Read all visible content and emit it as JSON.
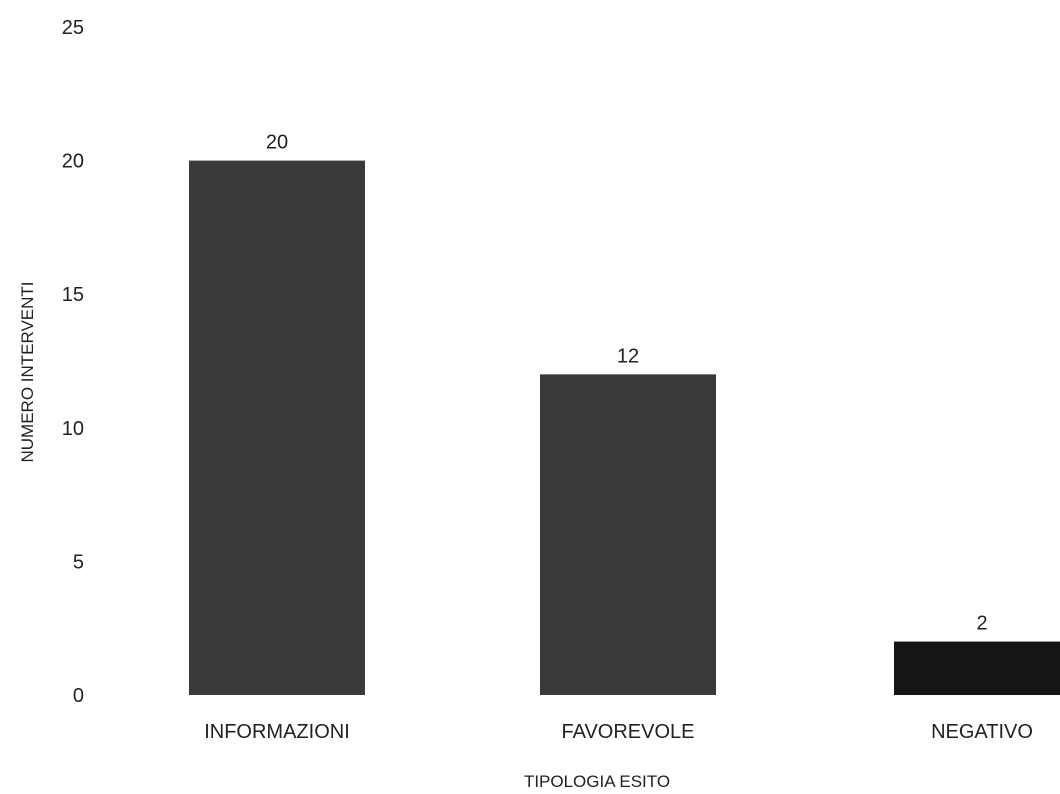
{
  "chart_data": {
    "type": "bar",
    "categories": [
      "INFORMAZIONI",
      "FAVOREVOLE",
      "NEGATIVO"
    ],
    "values": [
      20,
      12,
      2
    ],
    "title": "",
    "xlabel": "TIPOLOGIA ESITO",
    "ylabel": "NUMERO INTERVENTI",
    "ylim": [
      0,
      25
    ],
    "yticks": [
      0,
      5,
      10,
      15,
      20,
      25
    ],
    "grid": false,
    "legend": "none",
    "bar_colors": [
      "#3a3a3a",
      "#3a3a3a",
      "#151515"
    ]
  }
}
